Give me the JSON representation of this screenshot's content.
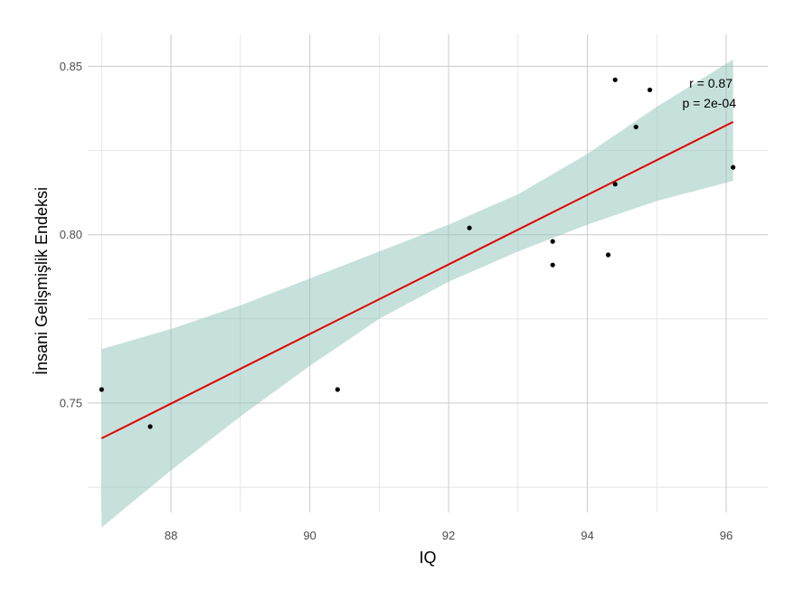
{
  "chart_data": {
    "type": "scatter",
    "title": "",
    "xlabel": "IQ",
    "ylabel": "İnsani Gelişmişlik Endeksi",
    "xlim": [
      86.8,
      96.6
    ],
    "ylim": [
      0.7175,
      0.8595
    ],
    "x_ticks": [
      88,
      90,
      92,
      94,
      96
    ],
    "y_ticks": [
      0.75,
      0.8,
      0.85
    ],
    "x_tick_labels": [
      "88",
      "90",
      "92",
      "94",
      "96"
    ],
    "y_tick_labels": [
      "0.75",
      "0.80",
      "0.85"
    ],
    "grid": true,
    "points": [
      {
        "x": 87.0,
        "y": 0.754
      },
      {
        "x": 87.7,
        "y": 0.743
      },
      {
        "x": 90.4,
        "y": 0.754
      },
      {
        "x": 92.3,
        "y": 0.802
      },
      {
        "x": 93.5,
        "y": 0.798
      },
      {
        "x": 93.5,
        "y": 0.791
      },
      {
        "x": 94.3,
        "y": 0.794
      },
      {
        "x": 94.4,
        "y": 0.846
      },
      {
        "x": 94.4,
        "y": 0.815
      },
      {
        "x": 94.7,
        "y": 0.832
      },
      {
        "x": 94.9,
        "y": 0.843
      },
      {
        "x": 96.1,
        "y": 0.82
      }
    ],
    "regression": {
      "x": [
        87.0,
        96.1
      ],
      "y": [
        0.7395,
        0.8335
      ],
      "ci_x": [
        87.0,
        88.0,
        89.0,
        90.0,
        91.0,
        92.0,
        93.0,
        94.0,
        95.0,
        96.1
      ],
      "ci_lower": [
        0.713,
        0.73,
        0.746,
        0.761,
        0.775,
        0.786,
        0.795,
        0.803,
        0.81,
        0.816
      ],
      "ci_upper": [
        0.766,
        0.772,
        0.779,
        0.787,
        0.795,
        0.803,
        0.812,
        0.824,
        0.838,
        0.852
      ]
    },
    "annotations": [
      "r = 0.87",
      "p = 2e-04"
    ],
    "colors": {
      "points": "#000000",
      "line": "#e00000",
      "ribbon": "#8ec3b8"
    }
  }
}
